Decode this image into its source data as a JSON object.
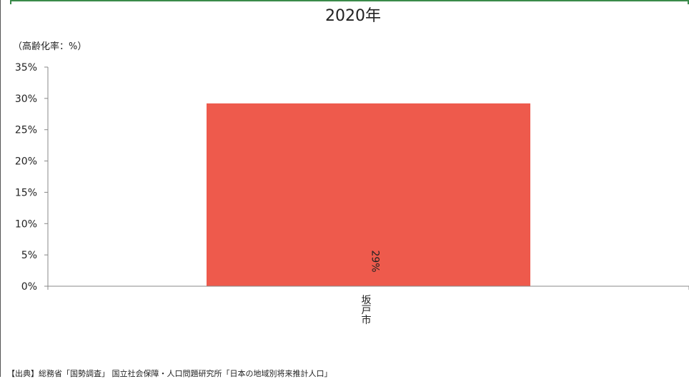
{
  "chart_data": {
    "type": "bar",
    "title": "2020年",
    "unit_label": "（高齢化率：%）",
    "categories": [
      "坂戸市"
    ],
    "values": [
      29.2
    ],
    "data_labels": [
      "29%"
    ],
    "y_ticks": [
      "0%",
      "5%",
      "10%",
      "15%",
      "20%",
      "25%",
      "30%",
      "35%"
    ],
    "ylim": [
      0,
      35
    ],
    "grid": false,
    "legend": "none",
    "bar_color": "#ee5a4c"
  },
  "source_text": "【出典】総務省「国勢調査」 国立社会保障・人口問題研究所「日本の地域別将来推計人口」"
}
